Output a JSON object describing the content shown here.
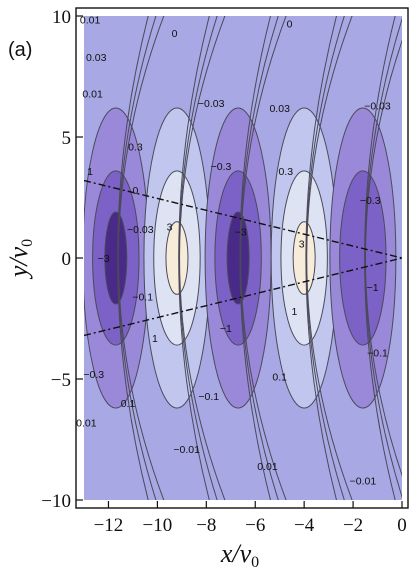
{
  "chart_data": {
    "type": "contour",
    "panel_label": "(a)",
    "xlabel": "x/v0",
    "ylabel": "y/v0",
    "xlim": [
      -13,
      0
    ],
    "ylim": [
      -10,
      10
    ],
    "xticks": [
      {
        "value": -12,
        "label": "−12"
      },
      {
        "value": -10,
        "label": "−10"
      },
      {
        "value": -8,
        "label": "−8"
      },
      {
        "value": -6,
        "label": "−6"
      },
      {
        "value": -4,
        "label": "−4"
      },
      {
        "value": -2,
        "label": "−2"
      },
      {
        "value": 0,
        "label": "0"
      }
    ],
    "yticks": [
      {
        "value": -10,
        "label": "−10"
      },
      {
        "value": -5,
        "label": "−5"
      },
      {
        "value": 0,
        "label": "0"
      },
      {
        "value": 5,
        "label": "5"
      },
      {
        "value": 10,
        "label": "10"
      }
    ],
    "contour_levels": [
      -3,
      -1,
      -0.3,
      -0.1,
      -0.03,
      -0.01,
      0,
      0.01,
      0.03,
      0.1,
      0.3,
      1,
      3
    ],
    "fill_colors": {
      "lt_-3": "#4a2a88",
      "-3_-1": "#7c62c6",
      "-1_-0.3": "#9a88d8",
      "-0.3_0.3": "#a8a8e4",
      "0.3_1": "#c0c6ee",
      "1_3": "#dde3f3",
      "gt_3": "#f7ecd9"
    },
    "blobs": [
      {
        "x": -11.7,
        "y": 0,
        "peak": -3
      },
      {
        "x": -9.2,
        "y": 0,
        "peak": 3
      },
      {
        "x": -6.7,
        "y": 0,
        "peak": -3
      },
      {
        "x": -4.0,
        "y": 0,
        "peak": 3
      },
      {
        "x": -1.6,
        "y": 0,
        "peak": -1
      }
    ],
    "dashed_lines": [
      {
        "x": [
          -13,
          0
        ],
        "y": [
          3.2,
          0
        ]
      },
      {
        "x": [
          -13,
          0
        ],
        "y": [
          -3.2,
          0
        ]
      }
    ],
    "contour_labels": [
      {
        "text": "0.01",
        "x": -12.75,
        "y": 9.85
      },
      {
        "text": "0.03",
        "x": -12.5,
        "y": 8.3
      },
      {
        "text": "0.01",
        "x": -12.65,
        "y": 6.8
      },
      {
        "text": "0.3",
        "x": -10.9,
        "y": 4.6
      },
      {
        "text": "1",
        "x": -12.75,
        "y": 3.6
      },
      {
        "text": "0",
        "x": -10.9,
        "y": 2.8
      },
      {
        "text": "−0.03",
        "x": -10.7,
        "y": 1.2
      },
      {
        "text": "−3",
        "x": -12.2,
        "y": 0.0
      },
      {
        "text": "3",
        "x": -9.5,
        "y": 1.3
      },
      {
        "text": "−0.1",
        "x": -10.6,
        "y": -1.6
      },
      {
        "text": "1",
        "x": -10.1,
        "y": -3.3
      },
      {
        "text": "−0.3",
        "x": -12.6,
        "y": -4.8
      },
      {
        "text": "0.1",
        "x": -11.2,
        "y": -6.0
      },
      {
        "text": "0.01",
        "x": -12.9,
        "y": -6.8
      },
      {
        "text": "0",
        "x": -9.3,
        "y": 9.3
      },
      {
        "text": "−0.03",
        "x": -7.8,
        "y": 6.4
      },
      {
        "text": "−0.3",
        "x": -7.4,
        "y": 3.8
      },
      {
        "text": "−3",
        "x": -6.6,
        "y": 1.1
      },
      {
        "text": "−1",
        "x": -7.2,
        "y": -2.9
      },
      {
        "text": "−0.1",
        "x": -7.9,
        "y": -5.7
      },
      {
        "text": "−0.01",
        "x": -8.8,
        "y": -7.9
      },
      {
        "text": "0.01",
        "x": -5.5,
        "y": -8.6
      },
      {
        "text": "0.1",
        "x": -5.0,
        "y": -4.9
      },
      {
        "text": "0.03",
        "x": -5.0,
        "y": 6.2
      },
      {
        "text": "0.3",
        "x": -4.75,
        "y": 3.6
      },
      {
        "text": "3",
        "x": -4.1,
        "y": 0.6
      },
      {
        "text": "1",
        "x": -4.4,
        "y": -2.2
      },
      {
        "text": "0",
        "x": -4.6,
        "y": 9.7
      },
      {
        "text": "−0.03",
        "x": -1.0,
        "y": 6.3
      },
      {
        "text": "−0.3",
        "x": -1.3,
        "y": 2.4
      },
      {
        "text": "−1",
        "x": -1.2,
        "y": -1.2
      },
      {
        "text": "−0.1",
        "x": -1.0,
        "y": -3.9
      },
      {
        "text": "−0.01",
        "x": -1.6,
        "y": -9.2
      }
    ]
  }
}
